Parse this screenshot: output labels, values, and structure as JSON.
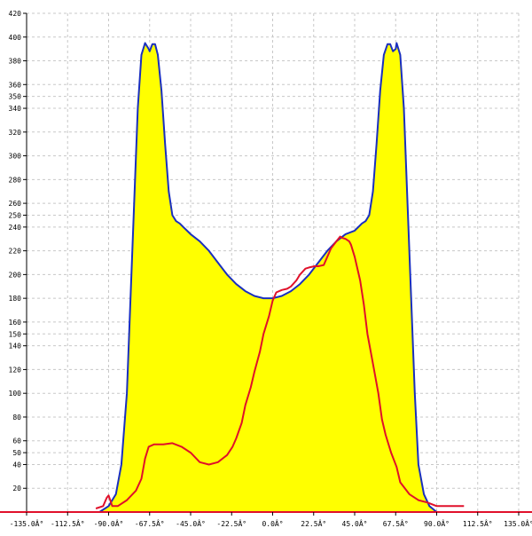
{
  "chart_data": {
    "type": "area",
    "xlim": [
      -135,
      135
    ],
    "ylim": [
      0,
      420
    ],
    "grid": true,
    "x_ticks": [
      {
        "value": -135,
        "label": "-135.0Â°"
      },
      {
        "value": -112.5,
        "label": "-112.5Â°"
      },
      {
        "value": -90,
        "label": "-90.0Â°"
      },
      {
        "value": -67.5,
        "label": "-67.5Â°"
      },
      {
        "value": -45,
        "label": "-45.0Â°"
      },
      {
        "value": -22.5,
        "label": "-22.5Â°"
      },
      {
        "value": 0,
        "label": "0.0Â°"
      },
      {
        "value": 22.5,
        "label": "22.5Â°"
      },
      {
        "value": 45,
        "label": "45.0Â°"
      },
      {
        "value": 67.5,
        "label": "67.5Â°"
      },
      {
        "value": 90,
        "label": "90.0Â°"
      },
      {
        "value": 112.5,
        "label": "112.5Â°"
      },
      {
        "value": 135,
        "label": "135.0Â°"
      }
    ],
    "y_ticks": [
      20,
      40,
      50,
      60,
      80,
      100,
      120,
      140,
      150,
      160,
      180,
      200,
      220,
      240,
      250,
      260,
      280,
      300,
      320,
      340,
      350,
      360,
      380,
      400,
      420
    ],
    "series": [
      {
        "color": "#1a2fbf",
        "fill": "#ffff00",
        "x": [
          -95,
          -90,
          -86,
          -83,
          -80,
          -78,
          -76,
          -74,
          -72,
          -70,
          -68,
          -67.5,
          -66,
          -64.5,
          -63,
          -61,
          -59,
          -57,
          -55,
          -53,
          -51,
          -49,
          -47,
          -45,
          -40,
          -35,
          -30,
          -25,
          -20,
          -15,
          -10,
          -5,
          0,
          5,
          10,
          15,
          20,
          25,
          30,
          35,
          40,
          45,
          47,
          49,
          51,
          53,
          55,
          57,
          59,
          61,
          63,
          64.5,
          66,
          67.5,
          68,
          70,
          72,
          74,
          76,
          78,
          80,
          83,
          86,
          90,
          95
        ],
        "y": [
          0,
          5,
          15,
          40,
          100,
          180,
          260,
          340,
          385,
          395,
          390,
          388,
          394,
          394,
          385,
          355,
          310,
          270,
          250,
          245,
          243,
          240,
          237,
          234,
          228,
          220,
          210,
          200,
          192,
          186,
          182,
          180,
          180,
          182,
          186,
          192,
          200,
          210,
          220,
          228,
          234,
          237,
          240,
          243,
          245,
          250,
          270,
          310,
          355,
          385,
          394,
          394,
          388,
          390,
          395,
          385,
          340,
          260,
          180,
          100,
          40,
          15,
          5,
          0,
          0
        ]
      },
      {
        "color": "#e0102a",
        "x": [
          -97,
          -93,
          -91,
          -90,
          -88,
          -85,
          -80,
          -75,
          -72,
          -70,
          -68,
          -65,
          -60,
          -55,
          -50,
          -45,
          -40,
          -35,
          -30,
          -25,
          -22,
          -20,
          -17,
          -15,
          -12,
          -10,
          -7,
          -5,
          -2,
          0,
          2,
          5,
          8,
          10,
          13,
          15,
          18,
          20,
          23,
          25,
          28,
          30,
          32,
          35,
          37,
          38,
          40,
          42,
          43,
          45,
          48,
          50,
          52,
          55,
          58,
          60,
          62,
          65,
          68,
          70,
          75,
          80,
          85,
          90,
          95,
          100,
          105
        ],
        "y": [
          3,
          5,
          12,
          14,
          5,
          5,
          10,
          18,
          28,
          45,
          55,
          57,
          57,
          58,
          55,
          50,
          42,
          40,
          42,
          48,
          55,
          62,
          75,
          90,
          105,
          118,
          135,
          150,
          165,
          178,
          185,
          187,
          188,
          190,
          195,
          200,
          205,
          206,
          207,
          207,
          208,
          215,
          222,
          228,
          232,
          231,
          230,
          228,
          225,
          215,
          195,
          175,
          150,
          125,
          100,
          78,
          65,
          50,
          38,
          25,
          15,
          10,
          8,
          5,
          5,
          5,
          5
        ]
      }
    ]
  }
}
